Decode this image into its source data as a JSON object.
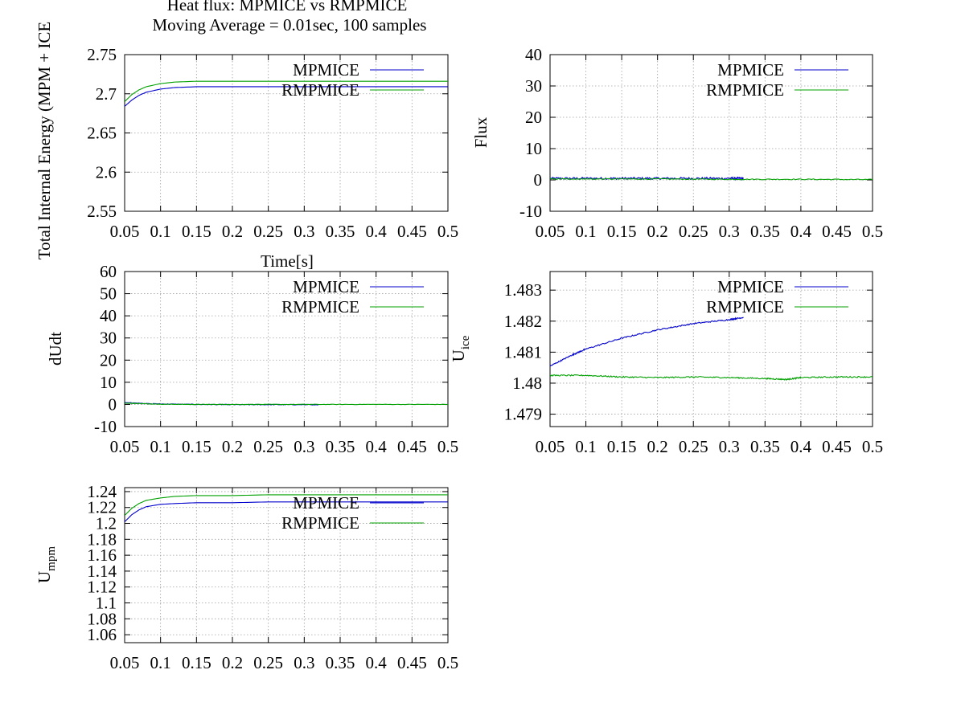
{
  "figure": {
    "title_line1": "Heat flux: MPMICE vs RMPMICE",
    "title_line2": "Moving Average = 0.01sec, 100 samples"
  },
  "colors": {
    "MPMICE": "#0000cc",
    "RMPMICE": "#00a000"
  },
  "chart_data": [
    {
      "id": "energy",
      "type": "line",
      "ylabel": "Total Internal Energy (MPM + ICE",
      "xlabel": "Time[s]",
      "xlim": [
        0.05,
        0.5
      ],
      "ylim": [
        2.55,
        2.75
      ],
      "xticks": [
        "0.05",
        "0.1",
        "0.15",
        "0.2",
        "0.25",
        "0.3",
        "0.35",
        "0.4",
        "0.45",
        "0.5"
      ],
      "yticks": [
        "2.55",
        "2.6",
        "2.65",
        "2.7",
        "2.75"
      ],
      "grid": true,
      "legend": "top-right",
      "series": [
        {
          "name": "MPMICE",
          "x": [
            0.05,
            0.06,
            0.07,
            0.08,
            0.1,
            0.12,
            0.15,
            0.2,
            0.25,
            0.3,
            0.32,
            0.35,
            0.4,
            0.45,
            0.5
          ],
          "y": [
            2.684,
            2.692,
            2.698,
            2.702,
            2.706,
            2.708,
            2.709,
            2.709,
            2.709,
            2.709,
            2.709,
            2.709,
            2.709,
            2.709,
            2.709
          ]
        },
        {
          "name": "RMPMICE",
          "x": [
            0.05,
            0.06,
            0.07,
            0.08,
            0.1,
            0.12,
            0.15,
            0.2,
            0.25,
            0.3,
            0.35,
            0.4,
            0.45,
            0.5
          ],
          "y": [
            2.69,
            2.699,
            2.705,
            2.709,
            2.713,
            2.715,
            2.716,
            2.716,
            2.716,
            2.716,
            2.716,
            2.716,
            2.716,
            2.716
          ]
        }
      ]
    },
    {
      "id": "flux",
      "type": "line",
      "ylabel": "Flux",
      "xlim": [
        0.05,
        0.5
      ],
      "ylim": [
        -10,
        40
      ],
      "xticks": [
        "0.05",
        "0.1",
        "0.15",
        "0.2",
        "0.25",
        "0.3",
        "0.35",
        "0.4",
        "0.45",
        "0.5"
      ],
      "yticks": [
        "-10",
        "0",
        "10",
        "20",
        "30",
        "40"
      ],
      "grid": true,
      "legend": "top-right",
      "series": [
        {
          "name": "MPMICE",
          "x": [
            0.05,
            0.1,
            0.15,
            0.2,
            0.25,
            0.3,
            0.32
          ],
          "y": [
            0.5,
            0.5,
            0.5,
            0.5,
            0.5,
            0.5,
            0.5
          ],
          "noise": 0.35
        },
        {
          "name": "RMPMICE",
          "x": [
            0.05,
            0.1,
            0.2,
            0.3,
            0.4,
            0.5
          ],
          "y": [
            0.3,
            0.3,
            0.3,
            0.2,
            0.2,
            0.1
          ],
          "noise": 0.15
        }
      ]
    },
    {
      "id": "dudt",
      "type": "line",
      "ylabel": "dUdt",
      "xlim": [
        0.05,
        0.5
      ],
      "ylim": [
        -10,
        60
      ],
      "xticks": [
        "0.05",
        "0.1",
        "0.15",
        "0.2",
        "0.25",
        "0.3",
        "0.35",
        "0.4",
        "0.45",
        "0.5"
      ],
      "yticks": [
        "-10",
        "0",
        "10",
        "20",
        "30",
        "40",
        "50",
        "60"
      ],
      "grid": true,
      "legend": "top-right",
      "series": [
        {
          "name": "MPMICE",
          "x": [
            0.05,
            0.07,
            0.1,
            0.15,
            0.2,
            0.25,
            0.3,
            0.32
          ],
          "y": [
            0.8,
            0.5,
            0.2,
            0.0,
            -0.1,
            -0.1,
            -0.1,
            -0.1
          ],
          "noise": 0.15
        },
        {
          "name": "RMPMICE",
          "x": [
            0.05,
            0.07,
            0.1,
            0.15,
            0.2,
            0.3,
            0.4,
            0.5
          ],
          "y": [
            0.6,
            0.4,
            0.1,
            0.0,
            0.0,
            0.0,
            0.0,
            0.0
          ],
          "noise": 0.1
        }
      ]
    },
    {
      "id": "uice",
      "type": "line",
      "ylabel": "U",
      "ylabel_sub": "ice",
      "xlim": [
        0.05,
        0.5
      ],
      "ylim": [
        1.4786,
        1.4836
      ],
      "xticks": [
        "0.05",
        "0.1",
        "0.15",
        "0.2",
        "0.25",
        "0.3",
        "0.35",
        "0.4",
        "0.45",
        "0.5"
      ],
      "yticks": [
        "1.479",
        "1.48",
        "1.481",
        "1.482",
        "1.483"
      ],
      "grid": true,
      "legend": "top-right",
      "series": [
        {
          "name": "MPMICE",
          "x": [
            0.05,
            0.08,
            0.1,
            0.15,
            0.2,
            0.25,
            0.3,
            0.32
          ],
          "y": [
            1.48055,
            1.4809,
            1.4811,
            1.48145,
            1.48172,
            1.48192,
            1.48205,
            1.48212
          ],
          "noise": 2e-05
        },
        {
          "name": "RMPMICE",
          "x": [
            0.05,
            0.1,
            0.15,
            0.2,
            0.25,
            0.3,
            0.35,
            0.38,
            0.4,
            0.45,
            0.5
          ],
          "y": [
            1.48025,
            1.48025,
            1.4802,
            1.48018,
            1.4802,
            1.48018,
            1.48015,
            1.48012,
            1.48018,
            1.4802,
            1.4802
          ],
          "noise": 2e-05
        }
      ]
    },
    {
      "id": "umpm",
      "type": "line",
      "ylabel": "U",
      "ylabel_sub": "mpm",
      "xlim": [
        0.05,
        0.5
      ],
      "ylim": [
        1.05,
        1.245
      ],
      "xticks": [
        "0.05",
        "0.1",
        "0.15",
        "0.2",
        "0.25",
        "0.3",
        "0.35",
        "0.4",
        "0.45",
        "0.5"
      ],
      "yticks": [
        "1.06",
        "1.08",
        "1.1",
        "1.12",
        "1.14",
        "1.16",
        "1.18",
        "1.2",
        "1.22",
        "1.24"
      ],
      "grid": true,
      "legend": "top-right",
      "series": [
        {
          "name": "MPMICE",
          "x": [
            0.05,
            0.06,
            0.07,
            0.08,
            0.1,
            0.12,
            0.15,
            0.2,
            0.25,
            0.3,
            0.32,
            0.4,
            0.5
          ],
          "y": [
            1.202,
            1.211,
            1.217,
            1.221,
            1.224,
            1.225,
            1.226,
            1.226,
            1.227,
            1.227,
            1.227,
            1.227,
            1.227
          ]
        },
        {
          "name": "RMPMICE",
          "x": [
            0.05,
            0.06,
            0.07,
            0.08,
            0.1,
            0.12,
            0.15,
            0.2,
            0.25,
            0.3,
            0.35,
            0.4,
            0.45,
            0.5
          ],
          "y": [
            1.21,
            1.219,
            1.225,
            1.229,
            1.232,
            1.234,
            1.235,
            1.235,
            1.236,
            1.236,
            1.236,
            1.236,
            1.236,
            1.236
          ]
        }
      ]
    }
  ]
}
